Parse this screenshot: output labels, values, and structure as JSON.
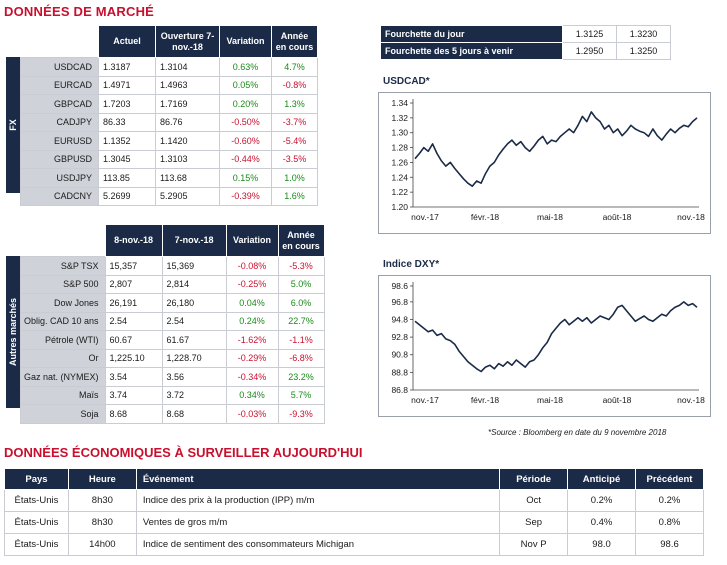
{
  "headings": {
    "market": "DONNÉES DE MARCHÉ",
    "economic": "DONNÉES ÉCONOMIQUES À SURVEILLER AUJOURD'HUI"
  },
  "fx": {
    "side_label": "FX",
    "headers": [
      "Actuel",
      "Ouverture 7-nov.-18",
      "Variation",
      "Année en cours"
    ],
    "rows": [
      {
        "name": "USDCAD",
        "a": "1.3187",
        "b": "1.3104",
        "var": "0.63%",
        "yr": "4.7%",
        "var_dir": "pos",
        "yr_dir": "pos"
      },
      {
        "name": "EURCAD",
        "a": "1.4971",
        "b": "1.4963",
        "var": "0.05%",
        "yr": "-0.8%",
        "var_dir": "pos",
        "yr_dir": "neg"
      },
      {
        "name": "GBPCAD",
        "a": "1.7203",
        "b": "1.7169",
        "var": "0.20%",
        "yr": "1.3%",
        "var_dir": "pos",
        "yr_dir": "pos"
      },
      {
        "name": "CADJPY",
        "a": "86.33",
        "b": "86.76",
        "var": "-0.50%",
        "yr": "-3.7%",
        "var_dir": "neg",
        "yr_dir": "neg"
      },
      {
        "name": "EURUSD",
        "a": "1.1352",
        "b": "1.1420",
        "var": "-0.60%",
        "yr": "-5.4%",
        "var_dir": "neg",
        "yr_dir": "neg"
      },
      {
        "name": "GBPUSD",
        "a": "1.3045",
        "b": "1.3103",
        "var": "-0.44%",
        "yr": "-3.5%",
        "var_dir": "neg",
        "yr_dir": "neg"
      },
      {
        "name": "USDJPY",
        "a": "113.85",
        "b": "113.68",
        "var": "0.15%",
        "yr": "1.0%",
        "var_dir": "pos",
        "yr_dir": "pos"
      },
      {
        "name": "CADCNY",
        "a": "5.2699",
        "b": "5.2905",
        "var": "-0.39%",
        "yr": "1.6%",
        "var_dir": "neg",
        "yr_dir": "pos"
      }
    ]
  },
  "other": {
    "side_label": "Autres marchés",
    "headers": [
      "8-nov.-18",
      "7-nov.-18",
      "Variation",
      "Année en cours"
    ],
    "rows": [
      {
        "name": "S&P TSX",
        "a": "15,357",
        "b": "15,369",
        "var": "-0.08%",
        "yr": "-5.3%",
        "var_dir": "neg",
        "yr_dir": "neg"
      },
      {
        "name": "S&P 500",
        "a": "2,807",
        "b": "2,814",
        "var": "-0.25%",
        "yr": "5.0%",
        "var_dir": "neg",
        "yr_dir": "pos"
      },
      {
        "name": "Dow Jones",
        "a": "26,191",
        "b": "26,180",
        "var": "0.04%",
        "yr": "6.0%",
        "var_dir": "pos",
        "yr_dir": "pos"
      },
      {
        "name": "Oblig. CAD 10 ans",
        "a": "2.54",
        "b": "2.54",
        "var": "0.24%",
        "yr": "22.7%",
        "var_dir": "pos",
        "yr_dir": "pos"
      },
      {
        "name": "Pétrole (WTI)",
        "a": "60.67",
        "b": "61.67",
        "var": "-1.62%",
        "yr": "-1.1%",
        "var_dir": "neg",
        "yr_dir": "neg"
      },
      {
        "name": "Or",
        "a": "1,225.10",
        "b": "1,228.70",
        "var": "-0.29%",
        "yr": "-6.8%",
        "var_dir": "neg",
        "yr_dir": "neg"
      },
      {
        "name": "Gaz nat. (NYMEX)",
        "a": "3.54",
        "b": "3.56",
        "var": "-0.34%",
        "yr": "23.2%",
        "var_dir": "neg",
        "yr_dir": "pos"
      },
      {
        "name": "Maïs",
        "a": "3.74",
        "b": "3.72",
        "var": "0.34%",
        "yr": "5.7%",
        "var_dir": "pos",
        "yr_dir": "pos"
      },
      {
        "name": "Soja",
        "a": "8.68",
        "b": "8.68",
        "var": "-0.03%",
        "yr": "-9.3%",
        "var_dir": "neg",
        "yr_dir": "neg"
      }
    ]
  },
  "ranges": [
    {
      "label": "Fourchette du jour",
      "low": "1.3125",
      "high": "1.3230"
    },
    {
      "label": "Fourchette des 5 jours à venir",
      "low": "1.2950",
      "high": "1.3250"
    }
  ],
  "colors": {
    "navy": "#1b2b47",
    "red": "#c8102e",
    "green": "#1a8a1a",
    "label_bg": "#cfd3d9"
  },
  "chart_data": [
    {
      "type": "line",
      "title": "USDCAD*",
      "xticks": [
        "nov.-17",
        "févr.-18",
        "mai-18",
        "août-18",
        "nov.-18"
      ],
      "ylim": [
        1.2,
        1.34
      ],
      "yticks": [
        1.2,
        1.22,
        1.24,
        1.26,
        1.28,
        1.3,
        1.32,
        1.34
      ],
      "values": [
        1.265,
        1.272,
        1.28,
        1.275,
        1.285,
        1.272,
        1.262,
        1.255,
        1.26,
        1.252,
        1.245,
        1.238,
        1.232,
        1.228,
        1.235,
        1.232,
        1.245,
        1.255,
        1.26,
        1.27,
        1.278,
        1.285,
        1.29,
        1.283,
        1.288,
        1.28,
        1.275,
        1.282,
        1.29,
        1.295,
        1.285,
        1.29,
        1.288,
        1.295,
        1.3,
        1.305,
        1.3,
        1.31,
        1.322,
        1.315,
        1.328,
        1.32,
        1.315,
        1.305,
        1.31,
        1.3,
        1.305,
        1.296,
        1.302,
        1.31,
        1.305,
        1.302,
        1.3,
        1.295,
        1.305,
        1.296,
        1.29,
        1.298,
        1.305,
        1.3,
        1.306,
        1.31,
        1.308,
        1.315,
        1.32
      ]
    },
    {
      "type": "line",
      "title": "Indice DXY*",
      "xticks": [
        "nov.-17",
        "févr.-18",
        "mai-18",
        "août-18",
        "nov.-18"
      ],
      "ylim": [
        86.8,
        98.6
      ],
      "yticks": [
        86.8,
        88.8,
        90.8,
        92.8,
        94.8,
        96.8,
        98.6
      ],
      "values": [
        94.6,
        94.2,
        93.8,
        93.4,
        93.6,
        93.0,
        93.2,
        92.6,
        92.4,
        92.0,
        91.2,
        90.6,
        90.0,
        89.6,
        89.2,
        88.9,
        89.4,
        89.6,
        89.2,
        89.8,
        89.5,
        90.0,
        89.6,
        90.2,
        89.8,
        89.4,
        90.0,
        90.2,
        90.8,
        91.6,
        92.2,
        93.2,
        93.8,
        94.4,
        94.8,
        94.2,
        94.6,
        95.0,
        94.6,
        95.0,
        94.4,
        94.8,
        95.2,
        95.0,
        94.8,
        95.4,
        96.2,
        96.4,
        95.8,
        95.2,
        94.6,
        94.9,
        95.2,
        94.8,
        94.6,
        95.0,
        95.4,
        95.2,
        95.8,
        96.2,
        96.4,
        96.8,
        96.4,
        96.6,
        96.2
      ]
    }
  ],
  "source_note": "*Source : Bloomberg en date du  9 novembre 2018",
  "economic": {
    "headers": [
      "Pays",
      "Heure",
      "Événement",
      "Période",
      "Anticipé",
      "Précédent"
    ],
    "rows": [
      {
        "pays": "États-Unis",
        "heure": "8h30",
        "event": "Indice des prix à la production (IPP) m/m",
        "periode": "Oct",
        "anticipe": "0.2%",
        "precedent": "0.2%"
      },
      {
        "pays": "États-Unis",
        "heure": "8h30",
        "event": "Ventes de gros m/m",
        "periode": "Sep",
        "anticipe": "0.4%",
        "precedent": "0.8%"
      },
      {
        "pays": "États-Unis",
        "heure": "14h00",
        "event": "Indice de sentiment des consommateurs Michigan",
        "periode": "Nov P",
        "anticipe": "98.0",
        "precedent": "98.6"
      }
    ]
  }
}
